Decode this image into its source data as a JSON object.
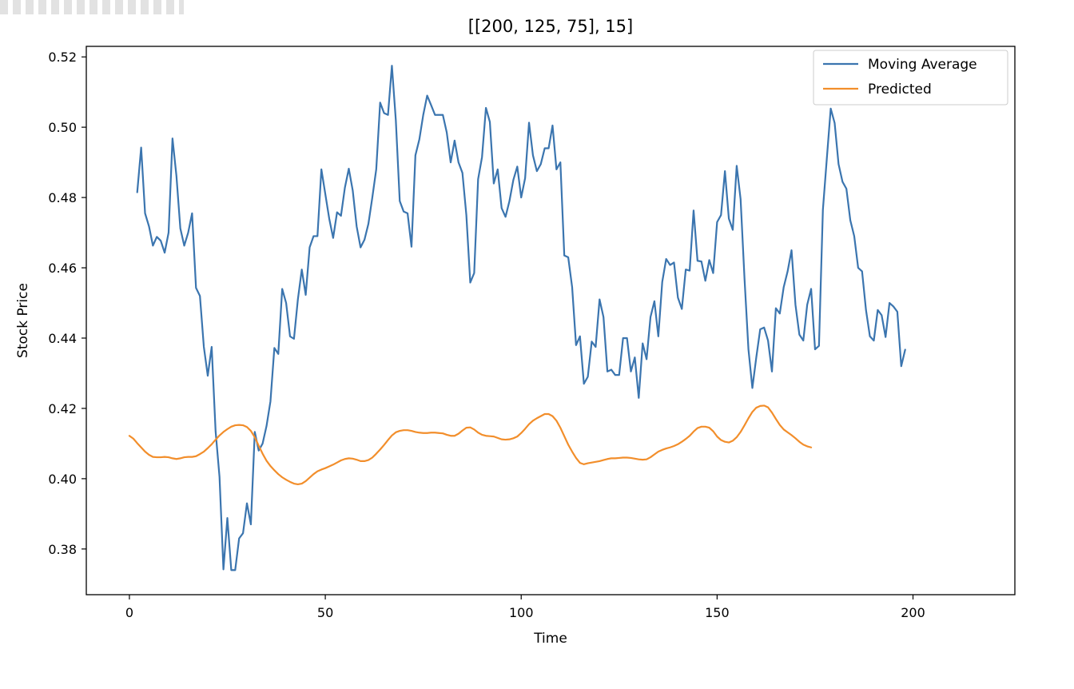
{
  "chart_data": {
    "type": "line",
    "title": "[[200, 125, 75], 15]",
    "xlabel": "Time",
    "ylabel": "Stock Price",
    "xlim": [
      -11,
      226
    ],
    "ylim": [
      0.367,
      0.523
    ],
    "xticks": [
      0,
      50,
      100,
      150,
      200
    ],
    "xtick_labels": [
      "0",
      "50",
      "100",
      "150",
      "200"
    ],
    "yticks": [
      0.38,
      0.4,
      0.42,
      0.44,
      0.46,
      0.48,
      0.5,
      0.52
    ],
    "ytick_labels": [
      "0.38",
      "0.40",
      "0.42",
      "0.44",
      "0.46",
      "0.48",
      "0.50",
      "0.52"
    ],
    "grid": false,
    "legend_position": "top-right",
    "series": [
      {
        "name": "Moving Average",
        "color": "#3b75af",
        "x_start": 2,
        "y": [
          0.4815,
          0.4942,
          0.4755,
          0.4718,
          0.4663,
          0.4688,
          0.4677,
          0.4643,
          0.47,
          0.4968,
          0.4862,
          0.4712,
          0.4663,
          0.47,
          0.4755,
          0.4543,
          0.452,
          0.4375,
          0.4293,
          0.4375,
          0.4135,
          0.4005,
          0.3742,
          0.3888,
          0.374,
          0.374,
          0.383,
          0.3845,
          0.393,
          0.387,
          0.4133,
          0.408,
          0.41,
          0.415,
          0.422,
          0.4372,
          0.4355,
          0.454,
          0.45,
          0.4405,
          0.4398,
          0.451,
          0.4595,
          0.4523,
          0.4658,
          0.469,
          0.469,
          0.488,
          0.481,
          0.474,
          0.4685,
          0.4758,
          0.4748,
          0.4828,
          0.4882,
          0.482,
          0.4718,
          0.4658,
          0.468,
          0.4725,
          0.48,
          0.488,
          0.507,
          0.504,
          0.5035,
          0.5175,
          0.502,
          0.479,
          0.476,
          0.4755,
          0.466,
          0.492,
          0.4965,
          0.5035,
          0.509,
          0.5063,
          0.5035,
          0.5035,
          0.5035,
          0.4985,
          0.49,
          0.4962,
          0.49,
          0.487,
          0.475,
          0.4558,
          0.4585,
          0.4852,
          0.4915,
          0.5055,
          0.5015,
          0.484,
          0.488,
          0.477,
          0.4745,
          0.479,
          0.485,
          0.4888,
          0.48,
          0.4855,
          0.5013,
          0.492,
          0.4875,
          0.4895,
          0.494,
          0.494,
          0.5005,
          0.488,
          0.49,
          0.4635,
          0.463,
          0.4545,
          0.438,
          0.4405,
          0.427,
          0.429,
          0.439,
          0.4375,
          0.451,
          0.446,
          0.4305,
          0.431,
          0.4295,
          0.4295,
          0.44,
          0.44,
          0.4305,
          0.4345,
          0.423,
          0.4385,
          0.434,
          0.446,
          0.4505,
          0.4405,
          0.456,
          0.4625,
          0.4608,
          0.4615,
          0.4515,
          0.4483,
          0.4595,
          0.4592,
          0.4763,
          0.462,
          0.4618,
          0.4563,
          0.4622,
          0.4585,
          0.473,
          0.475,
          0.4875,
          0.474,
          0.4708,
          0.489,
          0.4795,
          0.4568,
          0.4368,
          0.4258,
          0.4345,
          0.4425,
          0.443,
          0.4393,
          0.4305,
          0.4485,
          0.447,
          0.4545,
          0.459,
          0.465,
          0.4495,
          0.441,
          0.4393,
          0.4495,
          0.454,
          0.4368,
          0.4378,
          0.4765,
          0.491,
          0.5053,
          0.5012,
          0.4895,
          0.4845,
          0.4825,
          0.4735,
          0.469,
          0.46,
          0.459,
          0.448,
          0.4405,
          0.4393,
          0.448,
          0.4465,
          0.4403,
          0.45,
          0.449,
          0.4475,
          0.432,
          0.4367
        ]
      },
      {
        "name": "Predicted",
        "color": "#f28e2b",
        "x_start": 0,
        "y": [
          0.4122,
          0.4114,
          0.4101,
          0.4089,
          0.4077,
          0.4068,
          0.4062,
          0.4061,
          0.4061,
          0.4062,
          0.4061,
          0.4058,
          0.4056,
          0.4058,
          0.4061,
          0.4062,
          0.4062,
          0.4064,
          0.407,
          0.4077,
          0.4087,
          0.4098,
          0.4111,
          0.4123,
          0.4133,
          0.4141,
          0.4148,
          0.4152,
          0.4153,
          0.4152,
          0.4147,
          0.4136,
          0.4118,
          0.4094,
          0.4071,
          0.4051,
          0.4036,
          0.4024,
          0.4013,
          0.4004,
          0.3997,
          0.3991,
          0.3986,
          0.3984,
          0.3986,
          0.3993,
          0.4003,
          0.4013,
          0.4021,
          0.4026,
          0.403,
          0.4035,
          0.404,
          0.4046,
          0.4052,
          0.4056,
          0.4058,
          0.4057,
          0.4054,
          0.405,
          0.405,
          0.4053,
          0.406,
          0.4071,
          0.4083,
          0.4096,
          0.411,
          0.4123,
          0.4132,
          0.4136,
          0.4138,
          0.4138,
          0.4136,
          0.4133,
          0.4131,
          0.413,
          0.413,
          0.4131,
          0.4131,
          0.413,
          0.4129,
          0.4125,
          0.4122,
          0.4122,
          0.4128,
          0.4137,
          0.4145,
          0.4146,
          0.414,
          0.4131,
          0.4125,
          0.4122,
          0.4121,
          0.412,
          0.4116,
          0.4112,
          0.4111,
          0.4112,
          0.4115,
          0.412,
          0.413,
          0.4142,
          0.4155,
          0.4165,
          0.4172,
          0.4178,
          0.4184,
          0.4184,
          0.4178,
          0.4165,
          0.4145,
          0.4121,
          0.4097,
          0.4077,
          0.4059,
          0.4045,
          0.4041,
          0.4044,
          0.4046,
          0.4048,
          0.405,
          0.4053,
          0.4056,
          0.4058,
          0.4058,
          0.4059,
          0.406,
          0.406,
          0.4059,
          0.4057,
          0.4055,
          0.4054,
          0.4055,
          0.4061,
          0.4069,
          0.4077,
          0.4082,
          0.4086,
          0.4089,
          0.4093,
          0.4098,
          0.4105,
          0.4113,
          0.4122,
          0.4134,
          0.4144,
          0.4148,
          0.4148,
          0.4145,
          0.4135,
          0.412,
          0.411,
          0.4105,
          0.4103,
          0.4108,
          0.4118,
          0.4133,
          0.4152,
          0.4172,
          0.419,
          0.4202,
          0.4207,
          0.4208,
          0.4203,
          0.4188,
          0.417,
          0.4153,
          0.414,
          0.4132,
          0.4124,
          0.4115,
          0.4105,
          0.4097,
          0.4092,
          0.4089
        ]
      }
    ]
  }
}
